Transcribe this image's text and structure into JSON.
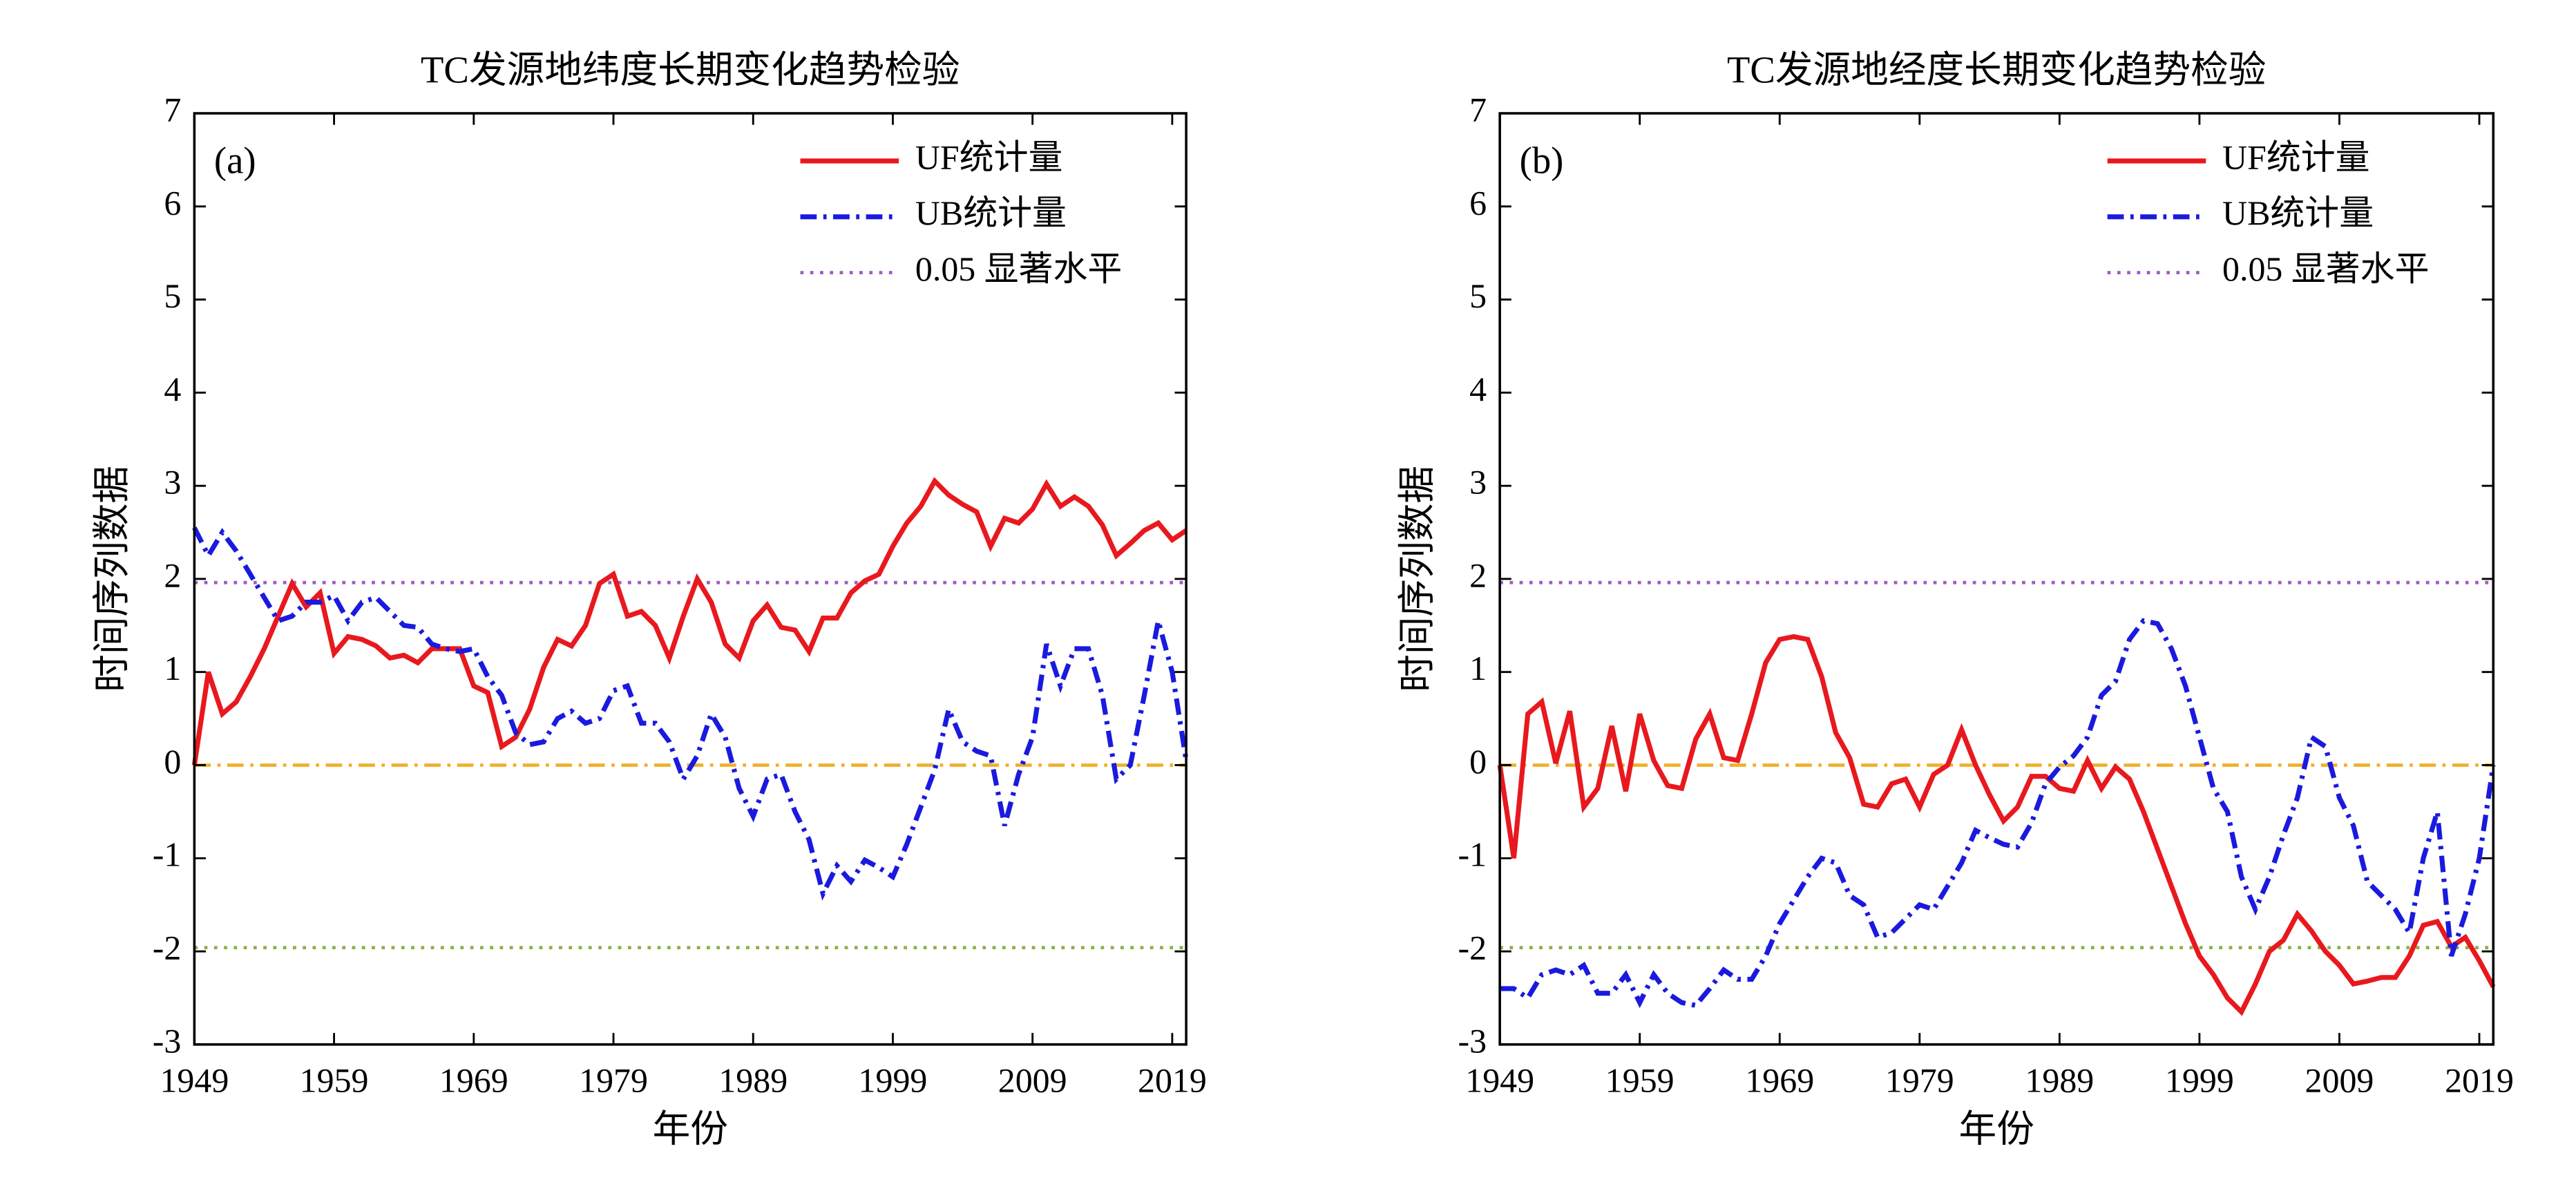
{
  "chart_data": [
    {
      "type": "line",
      "title": "TC发源地纬度长期变化趋势检验",
      "annotation": "(a)",
      "xlabel": "年份",
      "ylabel": "时间序列数据",
      "x": [
        1949,
        1950,
        1951,
        1952,
        1953,
        1954,
        1955,
        1956,
        1957,
        1958,
        1959,
        1960,
        1961,
        1962,
        1963,
        1964,
        1965,
        1966,
        1967,
        1968,
        1969,
        1970,
        1971,
        1972,
        1973,
        1974,
        1975,
        1976,
        1977,
        1978,
        1979,
        1980,
        1981,
        1982,
        1983,
        1984,
        1985,
        1986,
        1987,
        1988,
        1989,
        1990,
        1991,
        1992,
        1993,
        1994,
        1995,
        1996,
        1997,
        1998,
        1999,
        2000,
        2001,
        2002,
        2003,
        2004,
        2005,
        2006,
        2007,
        2008,
        2009,
        2010,
        2011,
        2012,
        2013,
        2014,
        2015,
        2016,
        2017,
        2018,
        2019,
        2020
      ],
      "series": [
        {
          "name": "UF统计量",
          "color": "#e8191e",
          "style": "solid",
          "values": [
            0,
            1.0,
            0.55,
            0.68,
            0.95,
            1.25,
            1.6,
            1.95,
            1.7,
            1.85,
            1.2,
            1.38,
            1.35,
            1.28,
            1.15,
            1.18,
            1.1,
            1.25,
            1.25,
            1.25,
            0.85,
            0.78,
            0.2,
            0.3,
            0.6,
            1.05,
            1.35,
            1.28,
            1.5,
            1.95,
            2.05,
            1.6,
            1.65,
            1.5,
            1.15,
            1.6,
            2.0,
            1.75,
            1.3,
            1.15,
            1.55,
            1.72,
            1.48,
            1.45,
            1.22,
            1.58,
            1.58,
            1.85,
            1.98,
            2.05,
            2.35,
            2.6,
            2.78,
            3.05,
            2.9,
            2.8,
            2.72,
            2.35,
            2.65,
            2.6,
            2.75,
            3.02,
            2.78,
            2.88,
            2.78,
            2.58,
            2.25,
            2.38,
            2.52,
            2.6,
            2.42,
            2.52
          ]
        },
        {
          "name": "UB统计量",
          "color": "#1a1adf",
          "style": "dashdot",
          "values": [
            2.55,
            2.25,
            2.5,
            2.3,
            2.05,
            1.8,
            1.55,
            1.6,
            1.75,
            1.75,
            1.82,
            1.55,
            1.75,
            1.8,
            1.65,
            1.5,
            1.48,
            1.3,
            1.25,
            1.22,
            1.25,
            0.95,
            0.75,
            0.35,
            0.22,
            0.25,
            0.5,
            0.58,
            0.45,
            0.5,
            0.8,
            0.85,
            0.45,
            0.45,
            0.25,
            -0.15,
            0.1,
            0.55,
            0.3,
            -0.25,
            -0.55,
            -0.15,
            -0.1,
            -0.5,
            -0.8,
            -1.38,
            -1.08,
            -1.25,
            -1.02,
            -1.1,
            -1.2,
            -0.85,
            -0.45,
            -0.05,
            0.6,
            0.25,
            0.15,
            0.1,
            -0.65,
            -0.1,
            0.3,
            1.3,
            0.85,
            1.25,
            1.25,
            0.75,
            -0.15,
            0.0,
            0.75,
            1.55,
            1.0,
            0.05
          ]
        }
      ],
      "reference_lines": [
        {
          "name": "0.05 显著水平",
          "value": 1.96,
          "color": "#a05cbf",
          "style": "dotted"
        },
        {
          "value": -1.96,
          "color": "#8db04a",
          "style": "dotted"
        },
        {
          "value": 0,
          "color": "#f0b02a",
          "style": "dashdot"
        }
      ],
      "xlim": [
        1949,
        2020
      ],
      "xticks": [
        1949,
        1959,
        1969,
        1979,
        1989,
        1999,
        2009,
        2019
      ],
      "ylim": [
        -3,
        7
      ],
      "yticks": [
        -3,
        -2,
        -1,
        0,
        1,
        2,
        3,
        4,
        5,
        6,
        7
      ],
      "legend": "upper right"
    },
    {
      "type": "line",
      "title": "TC发源地经度长期变化趋势检验",
      "annotation": "(b)",
      "xlabel": "年份",
      "ylabel": "时间序列数据",
      "x": [
        1949,
        1950,
        1951,
        1952,
        1953,
        1954,
        1955,
        1956,
        1957,
        1958,
        1959,
        1960,
        1961,
        1962,
        1963,
        1964,
        1965,
        1966,
        1967,
        1968,
        1969,
        1970,
        1971,
        1972,
        1973,
        1974,
        1975,
        1976,
        1977,
        1978,
        1979,
        1980,
        1981,
        1982,
        1983,
        1984,
        1985,
        1986,
        1987,
        1988,
        1989,
        1990,
        1991,
        1992,
        1993,
        1994,
        1995,
        1996,
        1997,
        1998,
        1999,
        2000,
        2001,
        2002,
        2003,
        2004,
        2005,
        2006,
        2007,
        2008,
        2009,
        2010,
        2011,
        2012,
        2013,
        2014,
        2015,
        2016,
        2017,
        2018,
        2019,
        2020
      ],
      "series": [
        {
          "name": "UF统计量",
          "color": "#e8191e",
          "style": "solid",
          "values": [
            0,
            -1.0,
            0.55,
            0.68,
            0.02,
            0.58,
            -0.45,
            -0.25,
            0.42,
            -0.28,
            0.55,
            0.05,
            -0.22,
            -0.25,
            0.28,
            0.55,
            0.08,
            0.05,
            0.55,
            1.1,
            1.35,
            1.38,
            1.35,
            0.95,
            0.35,
            0.08,
            -0.42,
            -0.45,
            -0.2,
            -0.15,
            -0.45,
            -0.1,
            0.0,
            0.38,
            0.0,
            -0.32,
            -0.6,
            -0.45,
            -0.12,
            -0.12,
            -0.25,
            -0.28,
            0.05,
            -0.25,
            -0.02,
            -0.15,
            -0.5,
            -0.9,
            -1.3,
            -1.7,
            -2.05,
            -2.25,
            -2.5,
            -2.65,
            -2.35,
            -2.0,
            -1.88,
            -1.6,
            -1.78,
            -2.0,
            -2.15,
            -2.35,
            -2.32,
            -2.28,
            -2.28,
            -2.05,
            -1.72,
            -1.68,
            -1.95,
            -1.85,
            -2.1,
            -2.38
          ]
        },
        {
          "name": "UB统计量",
          "color": "#1a1adf",
          "style": "dashdot",
          "values": [
            -2.4,
            -2.4,
            -2.5,
            -2.25,
            -2.2,
            -2.25,
            -2.15,
            -2.45,
            -2.45,
            -2.25,
            -2.55,
            -2.25,
            -2.45,
            -2.55,
            -2.58,
            -2.4,
            -2.2,
            -2.3,
            -2.3,
            -2.05,
            -1.7,
            -1.45,
            -1.2,
            -1.0,
            -1.05,
            -1.4,
            -1.5,
            -1.85,
            -1.8,
            -1.65,
            -1.5,
            -1.55,
            -1.3,
            -1.05,
            -0.7,
            -0.78,
            -0.85,
            -0.88,
            -0.62,
            -0.2,
            -0.02,
            0.1,
            0.3,
            0.75,
            0.9,
            1.35,
            1.55,
            1.52,
            1.25,
            0.85,
            0.3,
            -0.25,
            -0.5,
            -1.2,
            -1.55,
            -1.2,
            -0.75,
            -0.35,
            0.3,
            0.2,
            -0.35,
            -0.65,
            -1.25,
            -1.4,
            -1.55,
            -1.8,
            -1.0,
            -0.5,
            -2.05,
            -1.6,
            -1.0,
            0.0
          ]
        }
      ],
      "reference_lines": [
        {
          "name": "0.05 显著水平",
          "value": 1.96,
          "color": "#a05cbf",
          "style": "dotted"
        },
        {
          "value": -1.96,
          "color": "#8db04a",
          "style": "dotted"
        },
        {
          "value": 0,
          "color": "#f0b02a",
          "style": "dashdot"
        }
      ],
      "xlim": [
        1949,
        2020
      ],
      "xticks": [
        1949,
        1959,
        1969,
        1979,
        1989,
        1999,
        2009,
        2019
      ],
      "ylim": [
        -3,
        7
      ],
      "yticks": [
        -3,
        -2,
        -1,
        0,
        1,
        2,
        3,
        4,
        5,
        6,
        7
      ],
      "legend": "upper right"
    }
  ]
}
